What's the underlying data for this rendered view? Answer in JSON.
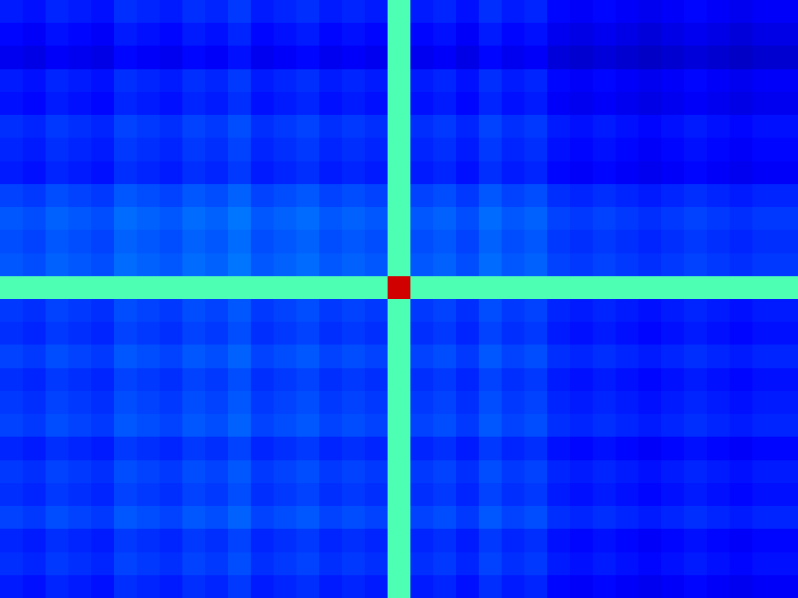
{
  "chart_data": {
    "type": "heatmap",
    "tick_labels": false,
    "zlim": [
      0,
      1
    ],
    "cells": [
      [
        0.15,
        0.14,
        0.16,
        0.15,
        0.14,
        0.17,
        0.16,
        0.15,
        0.17,
        0.16,
        0.18,
        0.15,
        0.16,
        0.17,
        0.15,
        0.16,
        0.15,
        0.45,
        0.15,
        0.16,
        0.14,
        0.17,
        0.15,
        0.16,
        0.13,
        0.12,
        0.13,
        0.12,
        0.11,
        0.12,
        0.13,
        0.12,
        0.11,
        0.12,
        0.12
      ],
      [
        0.13,
        0.12,
        0.14,
        0.13,
        0.12,
        0.15,
        0.14,
        0.13,
        0.15,
        0.14,
        0.16,
        0.13,
        0.14,
        0.15,
        0.13,
        0.14,
        0.13,
        0.45,
        0.13,
        0.14,
        0.12,
        0.15,
        0.13,
        0.14,
        0.11,
        0.1,
        0.11,
        0.1,
        0.09,
        0.1,
        0.11,
        0.1,
        0.09,
        0.1,
        0.1
      ],
      [
        0.11,
        0.1,
        0.12,
        0.11,
        0.1,
        0.13,
        0.12,
        0.11,
        0.13,
        0.12,
        0.14,
        0.11,
        0.12,
        0.13,
        0.11,
        0.12,
        0.11,
        0.45,
        0.11,
        0.12,
        0.1,
        0.13,
        0.11,
        0.12,
        0.09,
        0.08,
        0.09,
        0.08,
        0.07,
        0.08,
        0.09,
        0.08,
        0.07,
        0.08,
        0.08
      ],
      [
        0.15,
        0.14,
        0.16,
        0.15,
        0.14,
        0.17,
        0.16,
        0.15,
        0.17,
        0.16,
        0.18,
        0.15,
        0.16,
        0.17,
        0.15,
        0.16,
        0.15,
        0.45,
        0.15,
        0.16,
        0.14,
        0.17,
        0.15,
        0.16,
        0.13,
        0.12,
        0.13,
        0.12,
        0.11,
        0.12,
        0.13,
        0.12,
        0.11,
        0.12,
        0.12
      ],
      [
        0.14,
        0.13,
        0.15,
        0.14,
        0.13,
        0.16,
        0.15,
        0.14,
        0.16,
        0.15,
        0.17,
        0.14,
        0.15,
        0.16,
        0.14,
        0.15,
        0.14,
        0.45,
        0.14,
        0.15,
        0.13,
        0.16,
        0.14,
        0.15,
        0.12,
        0.11,
        0.12,
        0.11,
        0.1,
        0.11,
        0.12,
        0.11,
        0.1,
        0.11,
        0.11
      ],
      [
        0.17,
        0.16,
        0.18,
        0.17,
        0.16,
        0.19,
        0.18,
        0.17,
        0.19,
        0.18,
        0.2,
        0.17,
        0.18,
        0.19,
        0.17,
        0.18,
        0.17,
        0.45,
        0.17,
        0.18,
        0.16,
        0.19,
        0.17,
        0.18,
        0.15,
        0.14,
        0.15,
        0.14,
        0.13,
        0.14,
        0.15,
        0.14,
        0.13,
        0.14,
        0.14
      ],
      [
        0.16,
        0.15,
        0.17,
        0.16,
        0.15,
        0.18,
        0.17,
        0.16,
        0.18,
        0.17,
        0.19,
        0.16,
        0.17,
        0.18,
        0.16,
        0.17,
        0.16,
        0.45,
        0.16,
        0.17,
        0.15,
        0.18,
        0.16,
        0.17,
        0.14,
        0.13,
        0.14,
        0.13,
        0.12,
        0.13,
        0.14,
        0.13,
        0.12,
        0.13,
        0.13
      ],
      [
        0.15,
        0.14,
        0.16,
        0.15,
        0.14,
        0.17,
        0.16,
        0.15,
        0.17,
        0.16,
        0.18,
        0.15,
        0.16,
        0.17,
        0.15,
        0.16,
        0.15,
        0.45,
        0.15,
        0.16,
        0.14,
        0.17,
        0.15,
        0.16,
        0.13,
        0.12,
        0.13,
        0.12,
        0.11,
        0.12,
        0.13,
        0.12,
        0.11,
        0.12,
        0.12
      ],
      [
        0.19,
        0.18,
        0.2,
        0.19,
        0.18,
        0.21,
        0.2,
        0.19,
        0.21,
        0.2,
        0.22,
        0.19,
        0.2,
        0.21,
        0.19,
        0.2,
        0.19,
        0.45,
        0.19,
        0.2,
        0.18,
        0.21,
        0.19,
        0.2,
        0.17,
        0.16,
        0.17,
        0.16,
        0.15,
        0.16,
        0.17,
        0.16,
        0.15,
        0.16,
        0.16
      ],
      [
        0.21,
        0.2,
        0.22,
        0.21,
        0.2,
        0.23,
        0.22,
        0.21,
        0.23,
        0.22,
        0.24,
        0.21,
        0.22,
        0.23,
        0.21,
        0.22,
        0.21,
        0.45,
        0.21,
        0.22,
        0.2,
        0.23,
        0.21,
        0.22,
        0.19,
        0.18,
        0.19,
        0.18,
        0.17,
        0.18,
        0.19,
        0.18,
        0.17,
        0.18,
        0.18
      ],
      [
        0.2,
        0.19,
        0.21,
        0.2,
        0.19,
        0.22,
        0.21,
        0.2,
        0.22,
        0.21,
        0.23,
        0.2,
        0.21,
        0.22,
        0.2,
        0.21,
        0.2,
        0.45,
        0.2,
        0.21,
        0.19,
        0.22,
        0.2,
        0.21,
        0.18,
        0.17,
        0.18,
        0.17,
        0.16,
        0.17,
        0.18,
        0.17,
        0.16,
        0.17,
        0.17
      ],
      [
        0.21,
        0.2,
        0.22,
        0.21,
        0.2,
        0.23,
        0.22,
        0.21,
        0.23,
        0.22,
        0.24,
        0.21,
        0.22,
        0.23,
        0.21,
        0.22,
        0.21,
        0.45,
        0.21,
        0.22,
        0.2,
        0.23,
        0.21,
        0.22,
        0.19,
        0.18,
        0.19,
        0.18,
        0.17,
        0.18,
        0.19,
        0.18,
        0.17,
        0.18,
        0.18
      ],
      [
        0.45,
        0.45,
        0.45,
        0.45,
        0.45,
        0.45,
        0.45,
        0.45,
        0.45,
        0.45,
        0.45,
        0.45,
        0.45,
        0.45,
        0.45,
        0.45,
        0.45,
        0.92,
        0.45,
        0.45,
        0.45,
        0.45,
        0.45,
        0.45,
        0.45,
        0.45,
        0.45,
        0.45,
        0.45,
        0.45,
        0.45,
        0.45,
        0.45,
        0.45,
        0.45
      ],
      [
        0.18,
        0.17,
        0.19,
        0.18,
        0.17,
        0.2,
        0.19,
        0.18,
        0.2,
        0.19,
        0.21,
        0.18,
        0.19,
        0.2,
        0.18,
        0.19,
        0.18,
        0.45,
        0.18,
        0.19,
        0.17,
        0.2,
        0.18,
        0.19,
        0.16,
        0.15,
        0.16,
        0.15,
        0.14,
        0.15,
        0.16,
        0.15,
        0.14,
        0.15,
        0.15
      ],
      [
        0.17,
        0.16,
        0.18,
        0.17,
        0.16,
        0.19,
        0.18,
        0.17,
        0.19,
        0.18,
        0.2,
        0.17,
        0.18,
        0.19,
        0.17,
        0.18,
        0.17,
        0.45,
        0.17,
        0.18,
        0.16,
        0.19,
        0.17,
        0.18,
        0.15,
        0.14,
        0.15,
        0.14,
        0.13,
        0.14,
        0.15,
        0.14,
        0.13,
        0.14,
        0.14
      ],
      [
        0.19,
        0.18,
        0.2,
        0.19,
        0.18,
        0.21,
        0.2,
        0.19,
        0.21,
        0.2,
        0.22,
        0.19,
        0.2,
        0.21,
        0.19,
        0.2,
        0.19,
        0.45,
        0.19,
        0.2,
        0.18,
        0.21,
        0.19,
        0.2,
        0.17,
        0.16,
        0.17,
        0.16,
        0.15,
        0.16,
        0.17,
        0.16,
        0.15,
        0.16,
        0.16
      ],
      [
        0.17,
        0.16,
        0.18,
        0.17,
        0.16,
        0.19,
        0.18,
        0.17,
        0.19,
        0.18,
        0.2,
        0.17,
        0.18,
        0.19,
        0.17,
        0.18,
        0.17,
        0.45,
        0.17,
        0.18,
        0.16,
        0.19,
        0.17,
        0.18,
        0.15,
        0.14,
        0.15,
        0.14,
        0.13,
        0.14,
        0.15,
        0.14,
        0.13,
        0.14,
        0.14
      ],
      [
        0.18,
        0.17,
        0.19,
        0.18,
        0.17,
        0.2,
        0.19,
        0.18,
        0.2,
        0.19,
        0.21,
        0.18,
        0.19,
        0.2,
        0.18,
        0.19,
        0.18,
        0.45,
        0.18,
        0.19,
        0.17,
        0.2,
        0.18,
        0.19,
        0.16,
        0.15,
        0.16,
        0.15,
        0.14,
        0.15,
        0.16,
        0.15,
        0.14,
        0.15,
        0.15
      ],
      [
        0.19,
        0.18,
        0.2,
        0.19,
        0.18,
        0.21,
        0.2,
        0.19,
        0.21,
        0.2,
        0.22,
        0.19,
        0.2,
        0.21,
        0.19,
        0.2,
        0.19,
        0.45,
        0.19,
        0.2,
        0.18,
        0.21,
        0.19,
        0.2,
        0.17,
        0.16,
        0.17,
        0.16,
        0.15,
        0.16,
        0.17,
        0.16,
        0.15,
        0.16,
        0.16
      ],
      [
        0.16,
        0.15,
        0.17,
        0.16,
        0.15,
        0.18,
        0.17,
        0.16,
        0.18,
        0.17,
        0.19,
        0.16,
        0.17,
        0.18,
        0.16,
        0.17,
        0.16,
        0.45,
        0.16,
        0.17,
        0.15,
        0.18,
        0.16,
        0.17,
        0.14,
        0.13,
        0.14,
        0.13,
        0.12,
        0.13,
        0.14,
        0.13,
        0.12,
        0.13,
        0.13
      ],
      [
        0.18,
        0.17,
        0.19,
        0.18,
        0.17,
        0.2,
        0.19,
        0.18,
        0.2,
        0.19,
        0.21,
        0.18,
        0.19,
        0.2,
        0.18,
        0.19,
        0.18,
        0.45,
        0.18,
        0.19,
        0.17,
        0.2,
        0.18,
        0.19,
        0.16,
        0.15,
        0.16,
        0.15,
        0.14,
        0.15,
        0.16,
        0.15,
        0.14,
        0.15,
        0.15
      ],
      [
        0.17,
        0.16,
        0.18,
        0.17,
        0.16,
        0.19,
        0.18,
        0.17,
        0.19,
        0.18,
        0.2,
        0.17,
        0.18,
        0.19,
        0.17,
        0.18,
        0.17,
        0.45,
        0.17,
        0.18,
        0.16,
        0.19,
        0.17,
        0.18,
        0.15,
        0.14,
        0.15,
        0.14,
        0.13,
        0.14,
        0.15,
        0.14,
        0.13,
        0.14,
        0.14
      ],
      [
        0.19,
        0.18,
        0.2,
        0.19,
        0.18,
        0.21,
        0.2,
        0.19,
        0.21,
        0.2,
        0.22,
        0.19,
        0.2,
        0.21,
        0.19,
        0.2,
        0.19,
        0.45,
        0.19,
        0.2,
        0.18,
        0.21,
        0.19,
        0.2,
        0.17,
        0.16,
        0.17,
        0.16,
        0.15,
        0.16,
        0.17,
        0.16,
        0.15,
        0.16,
        0.16
      ],
      [
        0.16,
        0.15,
        0.17,
        0.16,
        0.15,
        0.18,
        0.17,
        0.16,
        0.18,
        0.17,
        0.19,
        0.16,
        0.17,
        0.18,
        0.16,
        0.17,
        0.16,
        0.45,
        0.16,
        0.17,
        0.15,
        0.18,
        0.16,
        0.17,
        0.14,
        0.13,
        0.14,
        0.13,
        0.12,
        0.13,
        0.14,
        0.13,
        0.12,
        0.13,
        0.13
      ],
      [
        0.17,
        0.16,
        0.18,
        0.17,
        0.16,
        0.19,
        0.18,
        0.17,
        0.19,
        0.18,
        0.2,
        0.17,
        0.18,
        0.19,
        0.17,
        0.18,
        0.17,
        0.45,
        0.17,
        0.18,
        0.16,
        0.19,
        0.17,
        0.18,
        0.15,
        0.14,
        0.15,
        0.14,
        0.13,
        0.14,
        0.15,
        0.14,
        0.13,
        0.14,
        0.14
      ],
      [
        0.15,
        0.14,
        0.16,
        0.15,
        0.14,
        0.17,
        0.16,
        0.15,
        0.17,
        0.16,
        0.18,
        0.15,
        0.16,
        0.17,
        0.15,
        0.16,
        0.15,
        0.45,
        0.15,
        0.16,
        0.14,
        0.17,
        0.15,
        0.16,
        0.13,
        0.12,
        0.13,
        0.12,
        0.11,
        0.12,
        0.13,
        0.12,
        0.11,
        0.12,
        0.12
      ]
    ]
  }
}
